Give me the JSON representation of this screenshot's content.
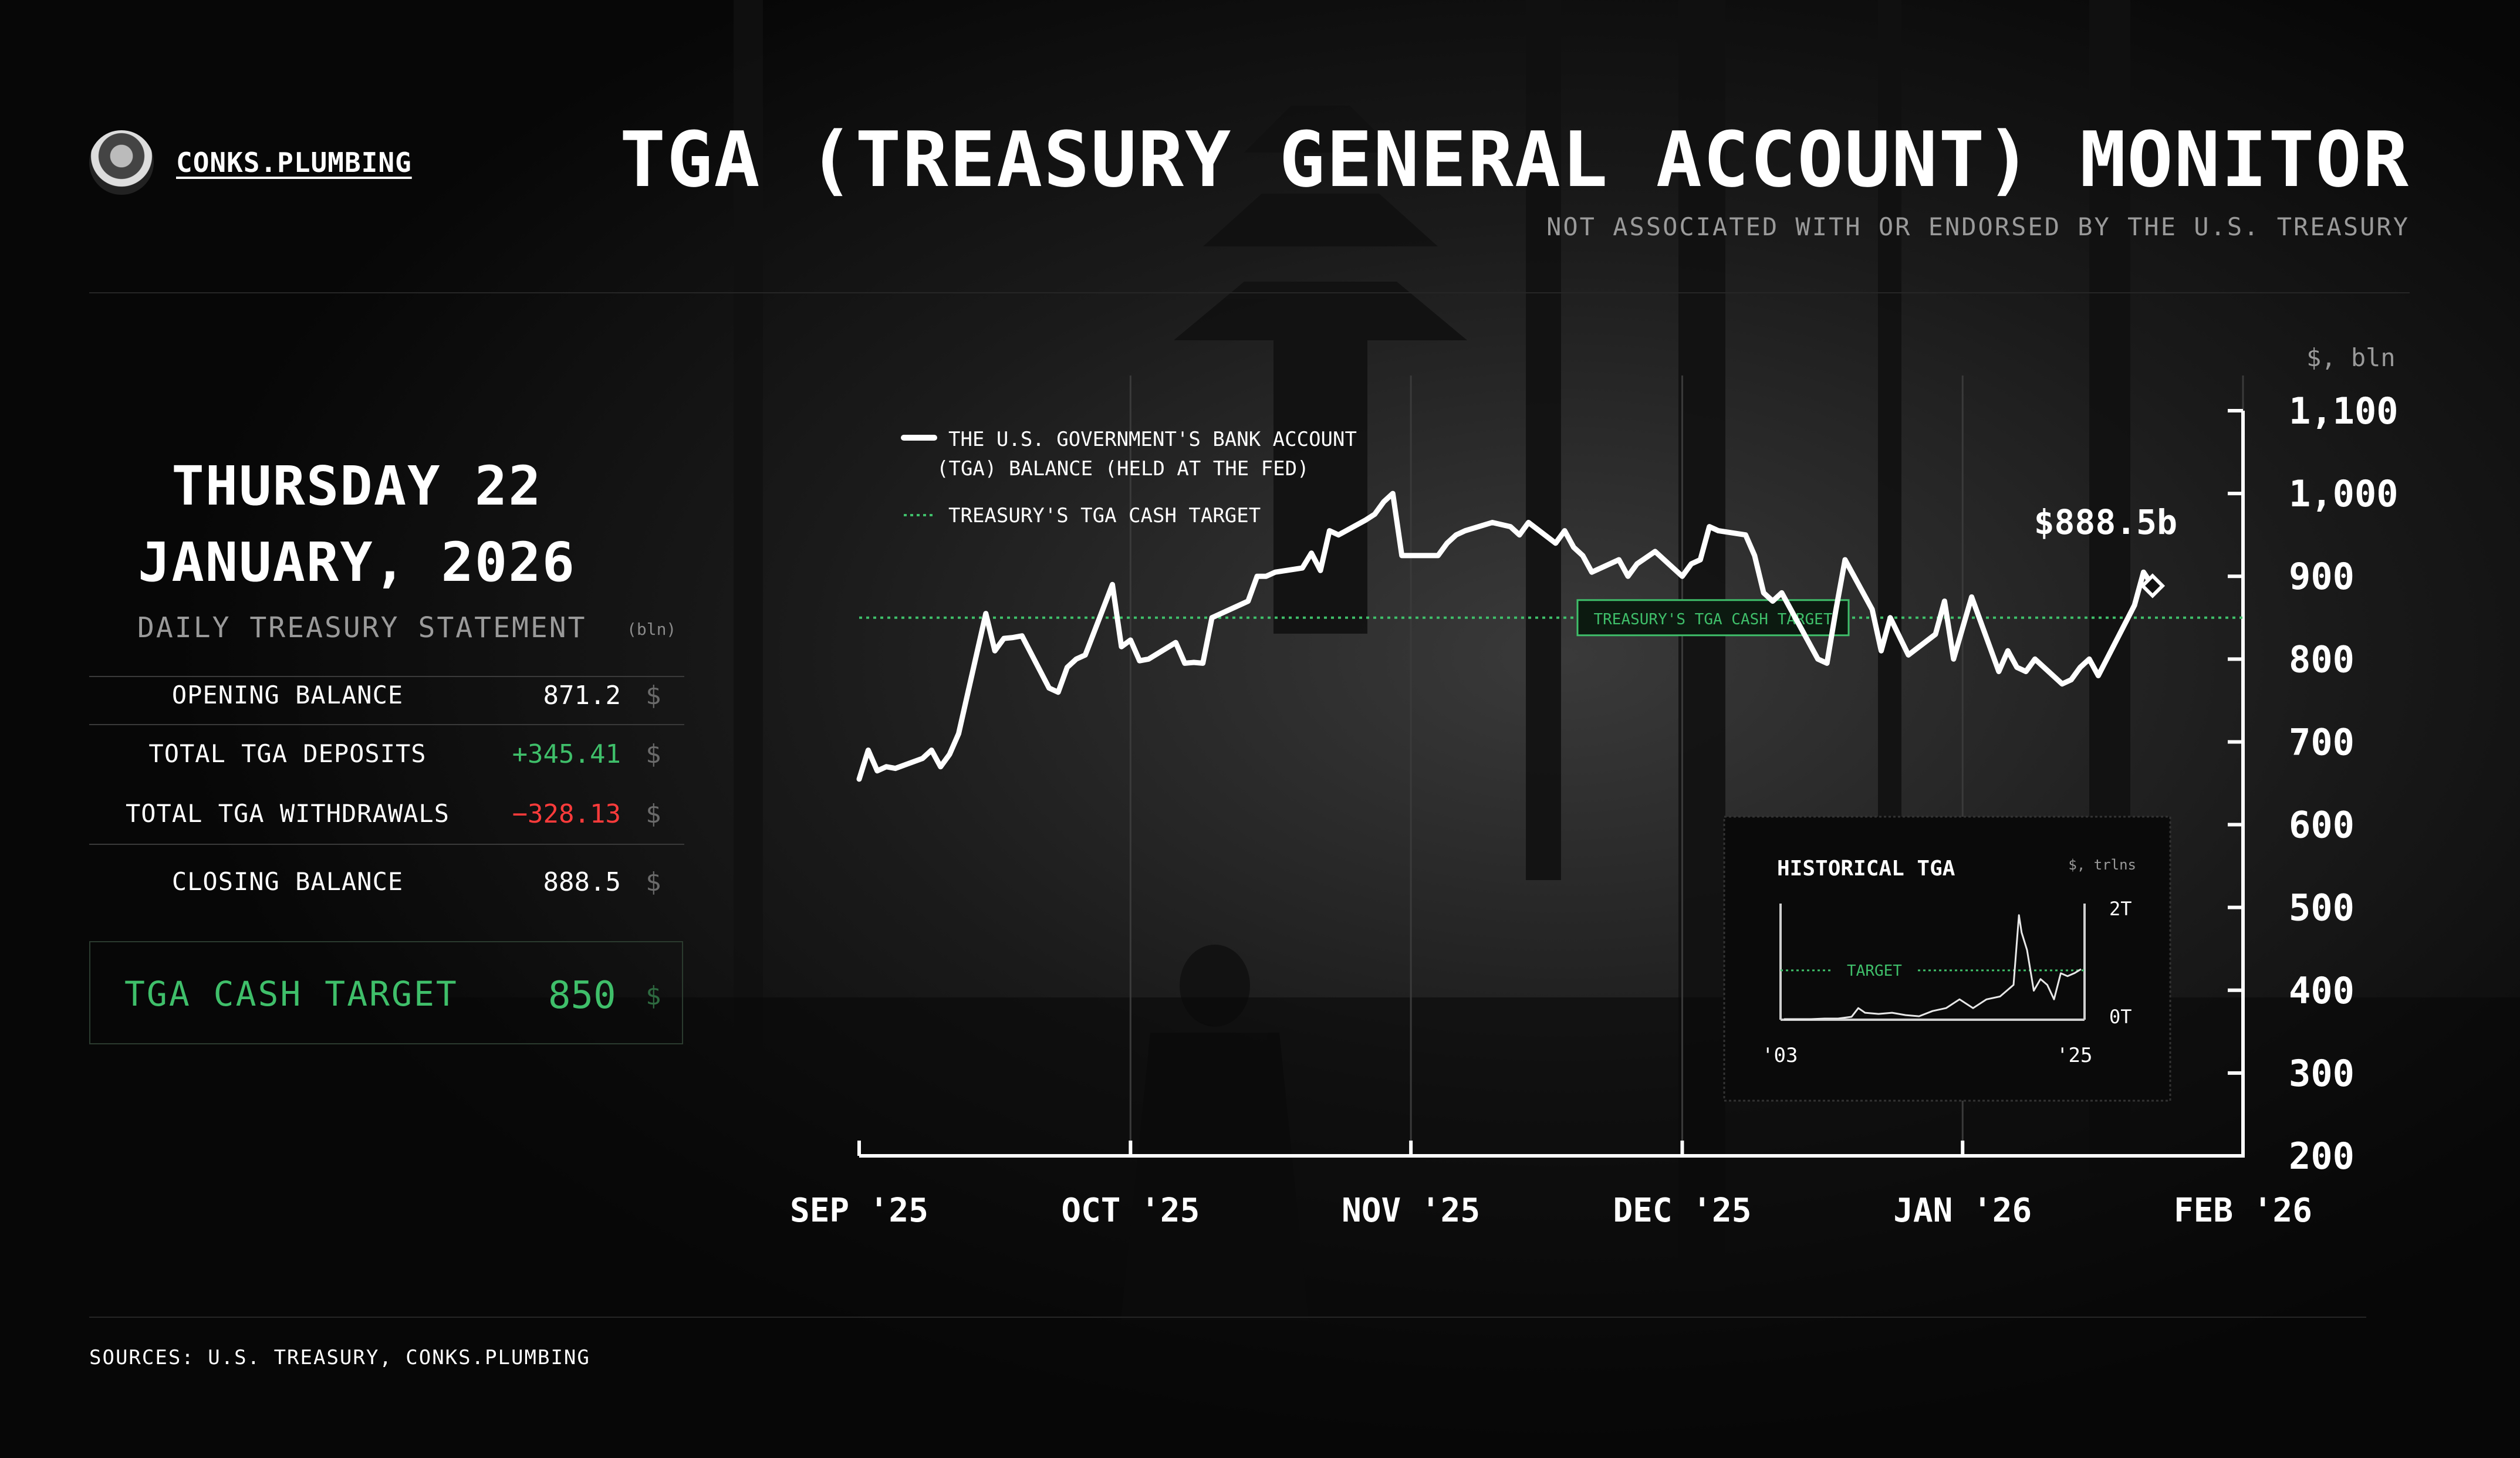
{
  "brand": {
    "name": "CONKS.PLUMBING"
  },
  "header": {
    "title": "TGA (TREASURY GENERAL ACCOUNT) MONITOR",
    "subtitle": "NOT ASSOCIATED WITH OR ENDORSED BY THE U.S. TREASURY"
  },
  "summary": {
    "date_line1": "THURSDAY 22",
    "date_line2": "JANUARY, 2026",
    "statement_label": "DAILY TREASURY STATEMENT",
    "unit": "(bln)",
    "rows": [
      {
        "label": "OPENING BALANCE",
        "value": "871.2",
        "currency": "$"
      },
      {
        "label": "TOTAL TGA DEPOSITS",
        "value": "+345.41",
        "currency": "$"
      },
      {
        "label": "TOTAL TGA WITHDRAWALS",
        "value": "−328.13",
        "currency": "$"
      },
      {
        "label": "CLOSING BALANCE",
        "value": "888.5",
        "currency": "$"
      }
    ],
    "target_label": "TGA CASH TARGET",
    "target_value": "850",
    "target_currency": "$"
  },
  "colors": {
    "line": "#ffffff",
    "target": "#3fbf6a",
    "negative": "#ff3b3b",
    "background": "#070707"
  },
  "icons": [
    "ninja-avatar-icon"
  ],
  "chart_data": [
    {
      "type": "line",
      "ylabel": "$, bln",
      "ylim": [
        200,
        1100
      ],
      "yticks": [
        "1,100",
        "1,000",
        "900",
        "800",
        "700",
        "600",
        "500",
        "400",
        "300",
        "200"
      ],
      "ytick_values": [
        1100,
        1000,
        900,
        800,
        700,
        600,
        500,
        400,
        300,
        200
      ],
      "xticks": [
        "SEP '25",
        "OCT '25",
        "NOV '25",
        "DEC '25",
        "JAN '26",
        "FEB '26"
      ],
      "xlim": [
        "2025-09-01",
        "2026-02-01"
      ],
      "grid": "vertical",
      "legend": "top-left",
      "last_value_label": "$888.5b",
      "target_value": 850,
      "target_label": "TREASURY'S TGA CASH TARGET",
      "series": [
        {
          "name": "THE U.S. GOVERNMENT'S BANK ACCOUNT (TGA) BALANCE (HELD AT THE FED)",
          "dates": [
            "2025-09-01",
            "2025-09-02",
            "2025-09-03",
            "2025-09-04",
            "2025-09-05",
            "2025-09-08",
            "2025-09-09",
            "2025-09-10",
            "2025-09-11",
            "2025-09-12",
            "2025-09-15",
            "2025-09-16",
            "2025-09-17",
            "2025-09-18",
            "2025-09-19",
            "2025-09-22",
            "2025-09-23",
            "2025-09-24",
            "2025-09-25",
            "2025-09-26",
            "2025-09-29",
            "2025-09-30",
            "2025-10-01",
            "2025-10-02",
            "2025-10-03",
            "2025-10-06",
            "2025-10-07",
            "2025-10-08",
            "2025-10-09",
            "2025-10-10",
            "2025-10-14",
            "2025-10-15",
            "2025-10-16",
            "2025-10-17",
            "2025-10-20",
            "2025-10-21",
            "2025-10-22",
            "2025-10-23",
            "2025-10-24",
            "2025-10-27",
            "2025-10-28",
            "2025-10-29",
            "2025-10-30",
            "2025-10-31",
            "2025-11-03",
            "2025-11-04",
            "2025-11-05",
            "2025-11-06",
            "2025-11-07",
            "2025-11-10",
            "2025-11-12",
            "2025-11-13",
            "2025-11-14",
            "2025-11-17",
            "2025-11-18",
            "2025-11-19",
            "2025-11-20",
            "2025-11-21",
            "2025-11-24",
            "2025-11-25",
            "2025-11-26",
            "2025-11-28",
            "2025-12-01",
            "2025-12-02",
            "2025-12-03",
            "2025-12-04",
            "2025-12-05",
            "2025-12-08",
            "2025-12-09",
            "2025-12-10",
            "2025-12-11",
            "2025-12-12",
            "2025-12-15",
            "2025-12-16",
            "2025-12-17",
            "2025-12-18",
            "2025-12-19",
            "2025-12-22",
            "2025-12-23",
            "2025-12-24",
            "2025-12-26",
            "2025-12-29",
            "2025-12-30",
            "2025-12-31",
            "2026-01-02",
            "2026-01-05",
            "2026-01-06",
            "2026-01-07",
            "2026-01-08",
            "2026-01-09",
            "2026-01-12",
            "2026-01-13",
            "2026-01-14",
            "2026-01-15",
            "2026-01-16",
            "2026-01-20",
            "2026-01-21",
            "2026-01-22"
          ],
          "values": [
            655,
            690,
            665,
            670,
            668,
            680,
            690,
            670,
            685,
            710,
            855,
            810,
            825,
            826,
            828,
            765,
            760,
            790,
            800,
            805,
            890,
            815,
            823,
            798,
            800,
            820,
            795,
            796,
            795,
            850,
            870,
            900,
            900,
            905,
            910,
            928,
            907,
            955,
            950,
            968,
            975,
            990,
            1000,
            925,
            925,
            925,
            940,
            950,
            955,
            965,
            960,
            950,
            965,
            940,
            955,
            935,
            925,
            905,
            920,
            900,
            915,
            930,
            900,
            915,
            920,
            960,
            955,
            950,
            925,
            880,
            870,
            880,
            820,
            800,
            795,
            860,
            920,
            860,
            810,
            850,
            805,
            830,
            870,
            800,
            875,
            785,
            810,
            790,
            785,
            800,
            770,
            775,
            790,
            800,
            780,
            865,
            905,
            888.5
          ]
        }
      ]
    },
    {
      "type": "line",
      "title": "HISTORICAL TGA",
      "ylabel": "$, trlns",
      "yticks": [
        "2T",
        "0T"
      ],
      "xticks": [
        "'03",
        "'25"
      ],
      "target_label": "TARGET",
      "series": [
        {
          "x": [
            2003,
            2004,
            2005,
            2006,
            2007,
            2008,
            2008.5,
            2009,
            2010,
            2011,
            2012,
            2013,
            2014,
            2015,
            2016,
            2017,
            2018,
            2019,
            2020,
            2020.4,
            2020.6,
            2021,
            2021.5,
            2022,
            2022.5,
            2023,
            2023.5,
            2024,
            2024.5,
            2025
          ],
          "values": [
            0.01,
            0.01,
            0.01,
            0.02,
            0.02,
            0.05,
            0.2,
            0.12,
            0.1,
            0.12,
            0.08,
            0.06,
            0.15,
            0.2,
            0.35,
            0.2,
            0.35,
            0.4,
            0.6,
            1.8,
            1.5,
            1.2,
            0.5,
            0.7,
            0.6,
            0.35,
            0.8,
            0.75,
            0.8,
            0.87
          ]
        }
      ]
    }
  ],
  "footer": {
    "sources": "SOURCES: U.S. TREASURY, CONKS.PLUMBING"
  }
}
